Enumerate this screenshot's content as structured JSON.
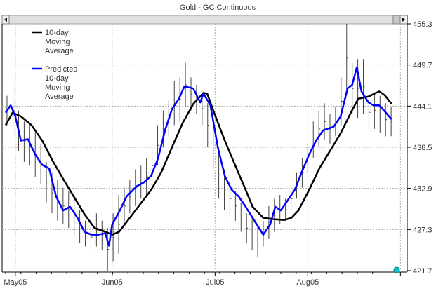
{
  "chart_data": {
    "type": "line",
    "title": "Gold - GC  Continuous",
    "xlabel": "",
    "ylabel": "",
    "x_unit": "trading day index",
    "xlim": [
      0,
      85
    ],
    "ylim": [
      421.7,
      455.3
    ],
    "grid": true,
    "legend_position": "top-left",
    "y_ticks": [
      455.3,
      449.7,
      444.1,
      438.5,
      432.9,
      427.3,
      421.7
    ],
    "x_ticks": [
      {
        "label": "May05",
        "x": 2.1
      },
      {
        "label": "Jun05",
        "x": 23.0
      },
      {
        "label": "Jul05",
        "x": 45.2
      },
      {
        "label": "Aug05",
        "x": 65.2
      },
      {
        "label": "",
        "x": 85.2
      }
    ],
    "series": [
      {
        "name": "10-day Moving Average",
        "legend": [
          "10-day",
          "Moving",
          "Average"
        ],
        "color": "#000000",
        "x": [
          0,
          1.5,
          3.3,
          5.6,
          7.9,
          10.2,
          12.4,
          14.7,
          17.0,
          19.2,
          21.5,
          23.0,
          24.5,
          26.8,
          29.1,
          31.4,
          33.6,
          35.9,
          38.2,
          40.5,
          42.7,
          43.5,
          45.0,
          47.3,
          49.5,
          51.8,
          53.3,
          55.6,
          57.9,
          60.2,
          61.7,
          63.2,
          65.5,
          67.7,
          70.0,
          72.3,
          74.5,
          76.1,
          78.3,
          80.6,
          81.8,
          83.3
        ],
        "y": [
          441.5,
          443.2,
          442.7,
          441.5,
          439.4,
          436.6,
          434.2,
          431.8,
          429.4,
          427.5,
          427.0,
          426.6,
          427.0,
          428.9,
          430.8,
          432.7,
          435.1,
          438.5,
          441.8,
          444.4,
          445.9,
          445.8,
          443.2,
          439.4,
          436.1,
          432.7,
          430.4,
          428.9,
          428.7,
          428.6,
          428.9,
          429.9,
          432.7,
          435.6,
          438.0,
          440.4,
          443.2,
          445.1,
          445.4,
          446.1,
          445.6,
          444.4
        ]
      },
      {
        "name": "Predicted 10-day Moving Average",
        "legend": [
          "Predicted",
          "10-day",
          "Moving",
          "Average"
        ],
        "color": "#0000ff",
        "x": [
          0,
          1.1,
          2.1,
          3.3,
          4.8,
          6.4,
          7.9,
          9.4,
          10.9,
          12.4,
          13.9,
          15.5,
          17.0,
          18.5,
          20.0,
          21.5,
          22.3,
          23.0,
          24.5,
          26.1,
          28.3,
          29.8,
          31.4,
          32.9,
          34.4,
          35.9,
          37.4,
          38.6,
          40.5,
          42.0,
          42.7,
          44.2,
          45.8,
          47.3,
          48.8,
          50.3,
          51.8,
          53.3,
          55.6,
          57.1,
          58.2,
          59.4,
          60.9,
          62.4,
          63.9,
          65.5,
          67.0,
          68.5,
          70.8,
          72.3,
          73.8,
          74.8,
          75.8,
          76.8,
          78.3,
          79.4,
          80.6,
          81.8,
          83.3
        ],
        "y": [
          443.2,
          444.2,
          442.7,
          439.4,
          439.6,
          437.5,
          436.1,
          435.6,
          431.8,
          429.9,
          430.4,
          428.9,
          427.0,
          426.6,
          426.6,
          426.8,
          425.1,
          428.0,
          429.7,
          431.8,
          433.2,
          433.7,
          434.6,
          437.0,
          440.8,
          443.7,
          445.1,
          446.8,
          446.5,
          444.6,
          445.8,
          444.2,
          438.5,
          434.6,
          432.7,
          431.8,
          430.4,
          428.9,
          426.6,
          428.0,
          430.4,
          429.9,
          431.3,
          432.7,
          435.1,
          437.5,
          439.4,
          440.8,
          441.3,
          442.7,
          446.5,
          447.0,
          449.4,
          446.1,
          444.6,
          444.2,
          444.2,
          443.4,
          442.3
        ]
      }
    ],
    "price_bars": [
      [
        0.3,
        445.5,
        441.5
      ],
      [
        1.6,
        447.0,
        440.0
      ],
      [
        2.8,
        443.5,
        438.0
      ],
      [
        4.0,
        442.0,
        436.5
      ],
      [
        5.2,
        441.5,
        436.0
      ],
      [
        6.4,
        440.5,
        434.5
      ],
      [
        7.6,
        439.0,
        433.5
      ],
      [
        8.8,
        436.5,
        431.0
      ],
      [
        10.0,
        435.0,
        429.5
      ],
      [
        11.2,
        434.0,
        428.5
      ],
      [
        12.4,
        433.0,
        428.0
      ],
      [
        13.6,
        432.5,
        427.5
      ],
      [
        14.8,
        431.5,
        426.5
      ],
      [
        16.0,
        430.0,
        425.5
      ],
      [
        17.2,
        428.5,
        425.0
      ],
      [
        18.4,
        428.0,
        424.5
      ],
      [
        19.6,
        429.5,
        425.0
      ],
      [
        20.8,
        428.5,
        424.5
      ],
      [
        22.0,
        427.5,
        421.7
      ],
      [
        23.2,
        429.5,
        423.0
      ],
      [
        24.4,
        432.0,
        424.0
      ],
      [
        25.6,
        433.0,
        428.0
      ],
      [
        26.8,
        434.0,
        429.5
      ],
      [
        28.0,
        435.5,
        430.5
      ],
      [
        29.2,
        436.0,
        431.5
      ],
      [
        30.4,
        437.0,
        432.0
      ],
      [
        31.6,
        438.5,
        433.5
      ],
      [
        32.8,
        441.5,
        436.0
      ],
      [
        34.0,
        443.5,
        438.5
      ],
      [
        35.2,
        445.0,
        440.0
      ],
      [
        36.4,
        447.5,
        441.5
      ],
      [
        37.6,
        448.0,
        442.0
      ],
      [
        38.8,
        450.0,
        444.0
      ],
      [
        40.0,
        448.0,
        443.5
      ],
      [
        41.2,
        447.0,
        443.0
      ],
      [
        42.4,
        446.0,
        441.5
      ],
      [
        43.6,
        444.5,
        438.5
      ],
      [
        44.8,
        441.0,
        435.5
      ],
      [
        46.0,
        438.0,
        431.5
      ],
      [
        47.2,
        435.5,
        430.0
      ],
      [
        48.4,
        434.0,
        429.0
      ],
      [
        49.6,
        432.5,
        428.5
      ],
      [
        50.8,
        431.0,
        427.0
      ],
      [
        52.0,
        429.5,
        425.5
      ],
      [
        53.2,
        429.0,
        424.5
      ],
      [
        54.4,
        428.0,
        423.5
      ],
      [
        55.6,
        428.5,
        425.0
      ],
      [
        56.8,
        430.5,
        426.0
      ],
      [
        58.0,
        431.5,
        427.0
      ],
      [
        59.2,
        432.0,
        428.0
      ],
      [
        60.4,
        431.5,
        428.5
      ],
      [
        61.6,
        433.0,
        430.0
      ],
      [
        62.8,
        435.0,
        431.5
      ],
      [
        64.0,
        437.0,
        433.0
      ],
      [
        65.2,
        439.0,
        435.0
      ],
      [
        66.4,
        442.0,
        437.0
      ],
      [
        67.6,
        443.5,
        438.5
      ],
      [
        68.8,
        444.5,
        439.5
      ],
      [
        70.0,
        443.0,
        439.0
      ],
      [
        71.2,
        444.0,
        440.0
      ],
      [
        72.4,
        448.0,
        441.5
      ],
      [
        73.6,
        455.3,
        446.0
      ],
      [
        74.8,
        450.0,
        443.0
      ],
      [
        76.0,
        450.5,
        442.5
      ],
      [
        77.2,
        450.5,
        443.0
      ],
      [
        78.4,
        445.5,
        441.0
      ],
      [
        79.6,
        446.0,
        441.0
      ],
      [
        80.8,
        445.5,
        440.5
      ],
      [
        82.0,
        444.5,
        440.0
      ],
      [
        83.2,
        444.0,
        440.0
      ]
    ],
    "marker_color": "#00c8c8"
  }
}
